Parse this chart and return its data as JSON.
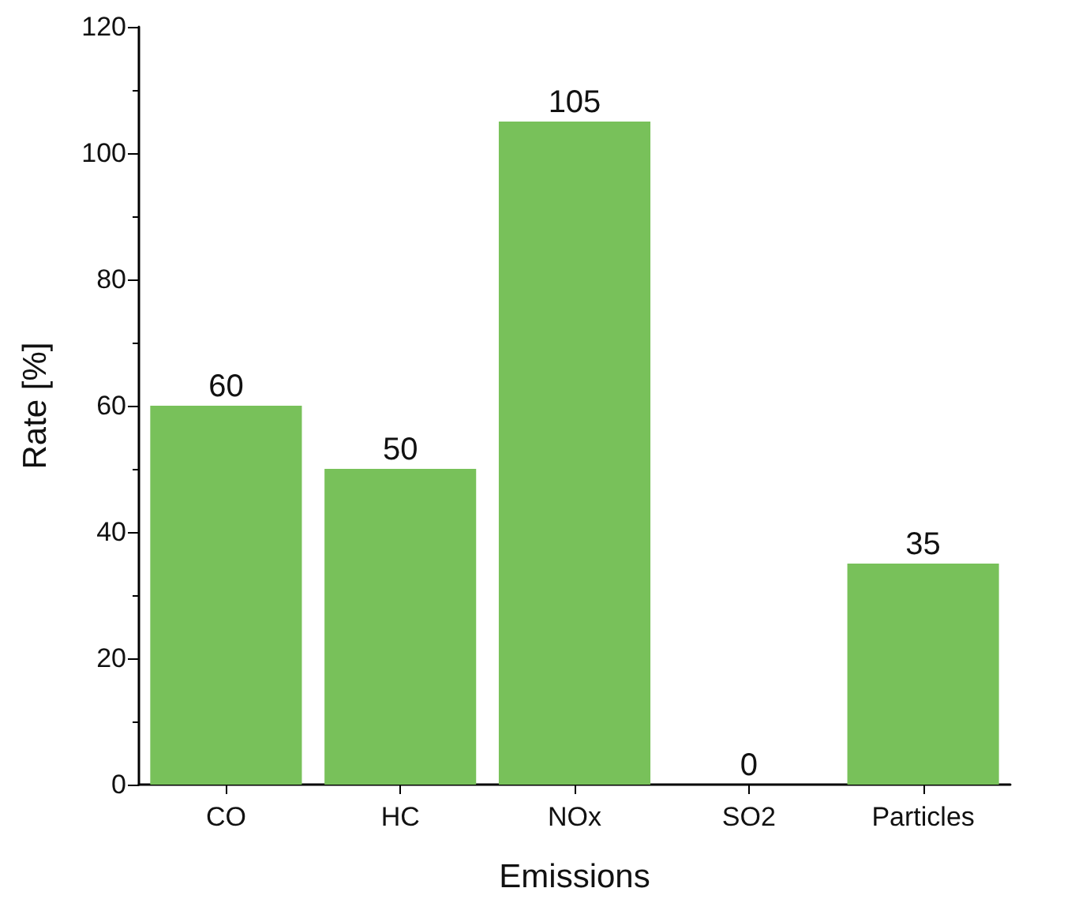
{
  "chart_data": {
    "type": "bar",
    "xlabel": "Emissions",
    "ylabel": "Rate [%]",
    "categories": [
      "CO",
      "HC",
      "NOx",
      "SO2",
      "Particles"
    ],
    "values": [
      60,
      50,
      105,
      0,
      35
    ],
    "color": "#78c15a",
    "ylim": [
      0,
      120
    ],
    "yticks": [
      0,
      20,
      40,
      60,
      80,
      100,
      120
    ],
    "grid": false,
    "data_labels": true
  }
}
